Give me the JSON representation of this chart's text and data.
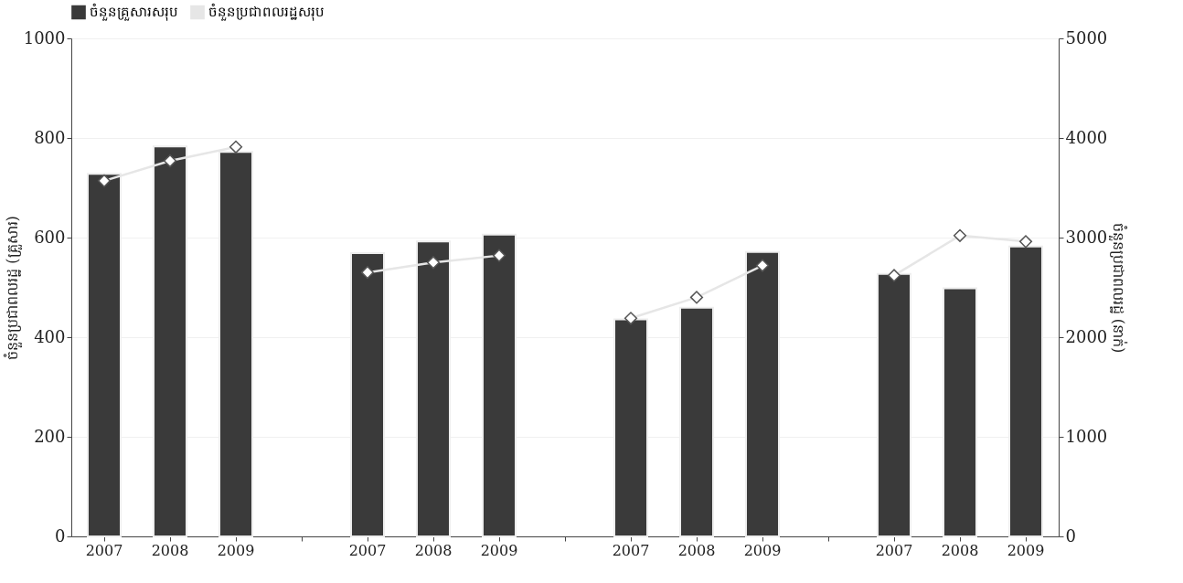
{
  "chart_data": {
    "type": "bar",
    "categories": [
      "2007",
      "2008",
      "2009",
      null,
      "2007",
      "2008",
      "2009",
      null,
      "2007",
      "2008",
      "2009",
      null,
      "2007",
      "2008",
      "2009"
    ],
    "ylabel": "ចំនួនប្រជាពលរដ្ឋ (គ្រួសារ)",
    "y2label": "ចំនួនប្រជាពលរដ្ឋ (នាក់)",
    "series": [
      {
        "name": "ចំនួនគ្រួសារសរុប",
        "color": "#3a3a3a",
        "values": [
          728,
          783,
          772,
          null,
          569,
          592,
          606,
          null,
          436,
          459,
          571,
          null,
          527,
          498,
          582
        ]
      },
      {
        "name": "ចំនួនប្រជាពលរដ្ឋសរុប",
        "type": "line",
        "axis": "y2",
        "color": "#e6e6e6",
        "marker": "diamond",
        "values": [
          3570,
          3770,
          3910,
          null,
          2650,
          2750,
          2820,
          null,
          2190,
          2400,
          2720,
          null,
          2620,
          3020,
          2960
        ]
      }
    ],
    "ylim": [
      0,
      1000
    ],
    "yticks": [
      0,
      200,
      400,
      600,
      800,
      1000
    ],
    "y2lim": [
      0,
      5000
    ],
    "y2ticks": [
      0,
      1000,
      2000,
      3000,
      4000,
      5000
    ],
    "grid": "y",
    "legend": "top"
  }
}
